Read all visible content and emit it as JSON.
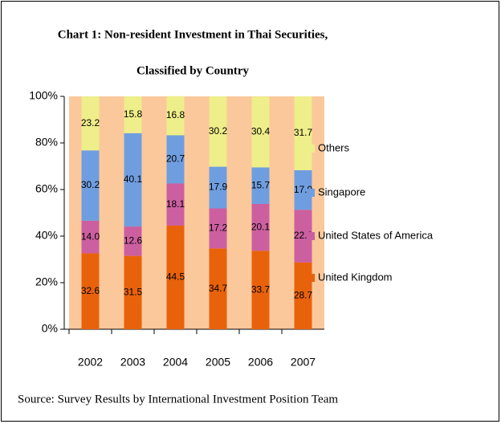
{
  "chart_data": {
    "type": "stacked_bar",
    "title": "Chart 1: Non-resident Investment in Thai Securities,",
    "subtitle": "Classified by Country",
    "note": "Source: Survey Results by International Investment Position Team",
    "categories": [
      "2002",
      "2003",
      "2004",
      "2005",
      "2006",
      "2007"
    ],
    "series": [
      {
        "name": "United Kingdom",
        "color": "#e8620c",
        "values": [
          32.6,
          31.5,
          44.5,
          34.7,
          33.7,
          28.7
        ],
        "value_labels": [
          "32.6",
          "31.5",
          "44.5",
          "34.7",
          "33.7",
          "28.7"
        ]
      },
      {
        "name": "United States of America",
        "color": "#cc5fa0",
        "values": [
          14.0,
          12.6,
          18.1,
          17.2,
          20.1,
          22.6
        ],
        "value_labels": [
          "14.0",
          "12.6",
          "18.1",
          "17.2",
          "20.1",
          "22.6"
        ]
      },
      {
        "name": "Singapore",
        "color": "#6f9ee0",
        "values": [
          30.2,
          40.1,
          20.7,
          17.9,
          15.7,
          17.0
        ],
        "value_labels": [
          "30.2",
          "40.1",
          "20.7",
          "17.9",
          "15.7",
          "17.0"
        ]
      },
      {
        "name": "Others",
        "color": "#eeee8a",
        "values": [
          23.2,
          15.8,
          16.8,
          30.2,
          30.4,
          31.7
        ],
        "value_labels": [
          "23.2",
          "15.8",
          "16.8",
          "30.2",
          "30.4",
          "31.7"
        ]
      }
    ],
    "ylim": [
      0,
      100
    ],
    "yticks": [
      {
        "value": 0,
        "label": "0%"
      },
      {
        "value": 20,
        "label": "20%"
      },
      {
        "value": 40,
        "label": "40%"
      },
      {
        "value": 60,
        "label": "60%"
      },
      {
        "value": 80,
        "label": "80%"
      },
      {
        "value": 100,
        "label": "100%"
      }
    ],
    "plot_background": "#fbc89b",
    "legend": "right"
  }
}
